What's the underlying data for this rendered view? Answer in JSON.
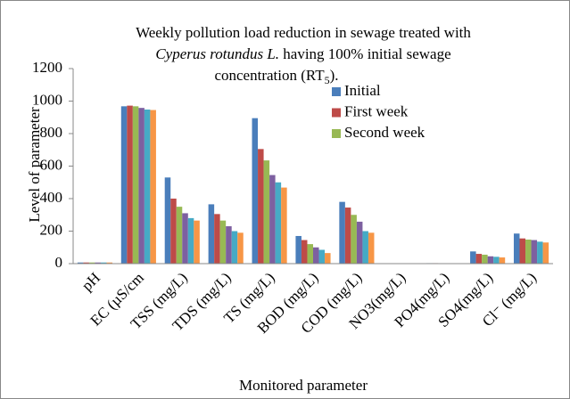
{
  "chart_data": {
    "type": "bar",
    "title": [
      "Weekly pollution load reduction in sewage treated with",
      "Cyperus rotundus L.",
      " having 100% initial sewage",
      "concentration (RT",
      "5",
      ")."
    ],
    "xlabel": "Monitored parameter",
    "ylabel": "Level of parameter",
    "categories": [
      "pH",
      "EC (µS/cm",
      "TSS (mg/L)",
      "TDS (mg/L)",
      "TS (mg/L)",
      "BOD (mg/L)",
      "COD (mg/L)",
      "NO3(mg/L)",
      "PO4(mg/L)",
      "SO4(mg/L)",
      "Cl⁻ (mg/L)"
    ],
    "series": [
      {
        "name": "Initial",
        "color": "#4a7ebb",
        "values": [
          7,
          968,
          530,
          365,
          895,
          170,
          380,
          2,
          3,
          75,
          185
        ]
      },
      {
        "name": "First week",
        "color": "#be4b48",
        "values": [
          7,
          972,
          400,
          305,
          705,
          145,
          345,
          2,
          3,
          60,
          155
        ]
      },
      {
        "name": "Second week",
        "color": "#98b954",
        "values": [
          7,
          968,
          350,
          265,
          635,
          120,
          300,
          2,
          2,
          55,
          148
        ]
      },
      {
        "color": "#7d60a0",
        "values": [
          7,
          958,
          310,
          230,
          545,
          100,
          258,
          1,
          2,
          45,
          145
        ]
      },
      {
        "color": "#46aac5",
        "values": [
          7,
          948,
          280,
          200,
          500,
          85,
          200,
          1,
          2,
          42,
          135
        ]
      },
      {
        "color": "#f79646",
        "values": [
          7,
          945,
          265,
          190,
          468,
          65,
          190,
          1,
          2,
          38,
          130
        ]
      }
    ],
    "ylim": [
      0,
      1200
    ],
    "yticks": [
      0,
      200,
      400,
      600,
      800,
      1000,
      1200
    ]
  }
}
